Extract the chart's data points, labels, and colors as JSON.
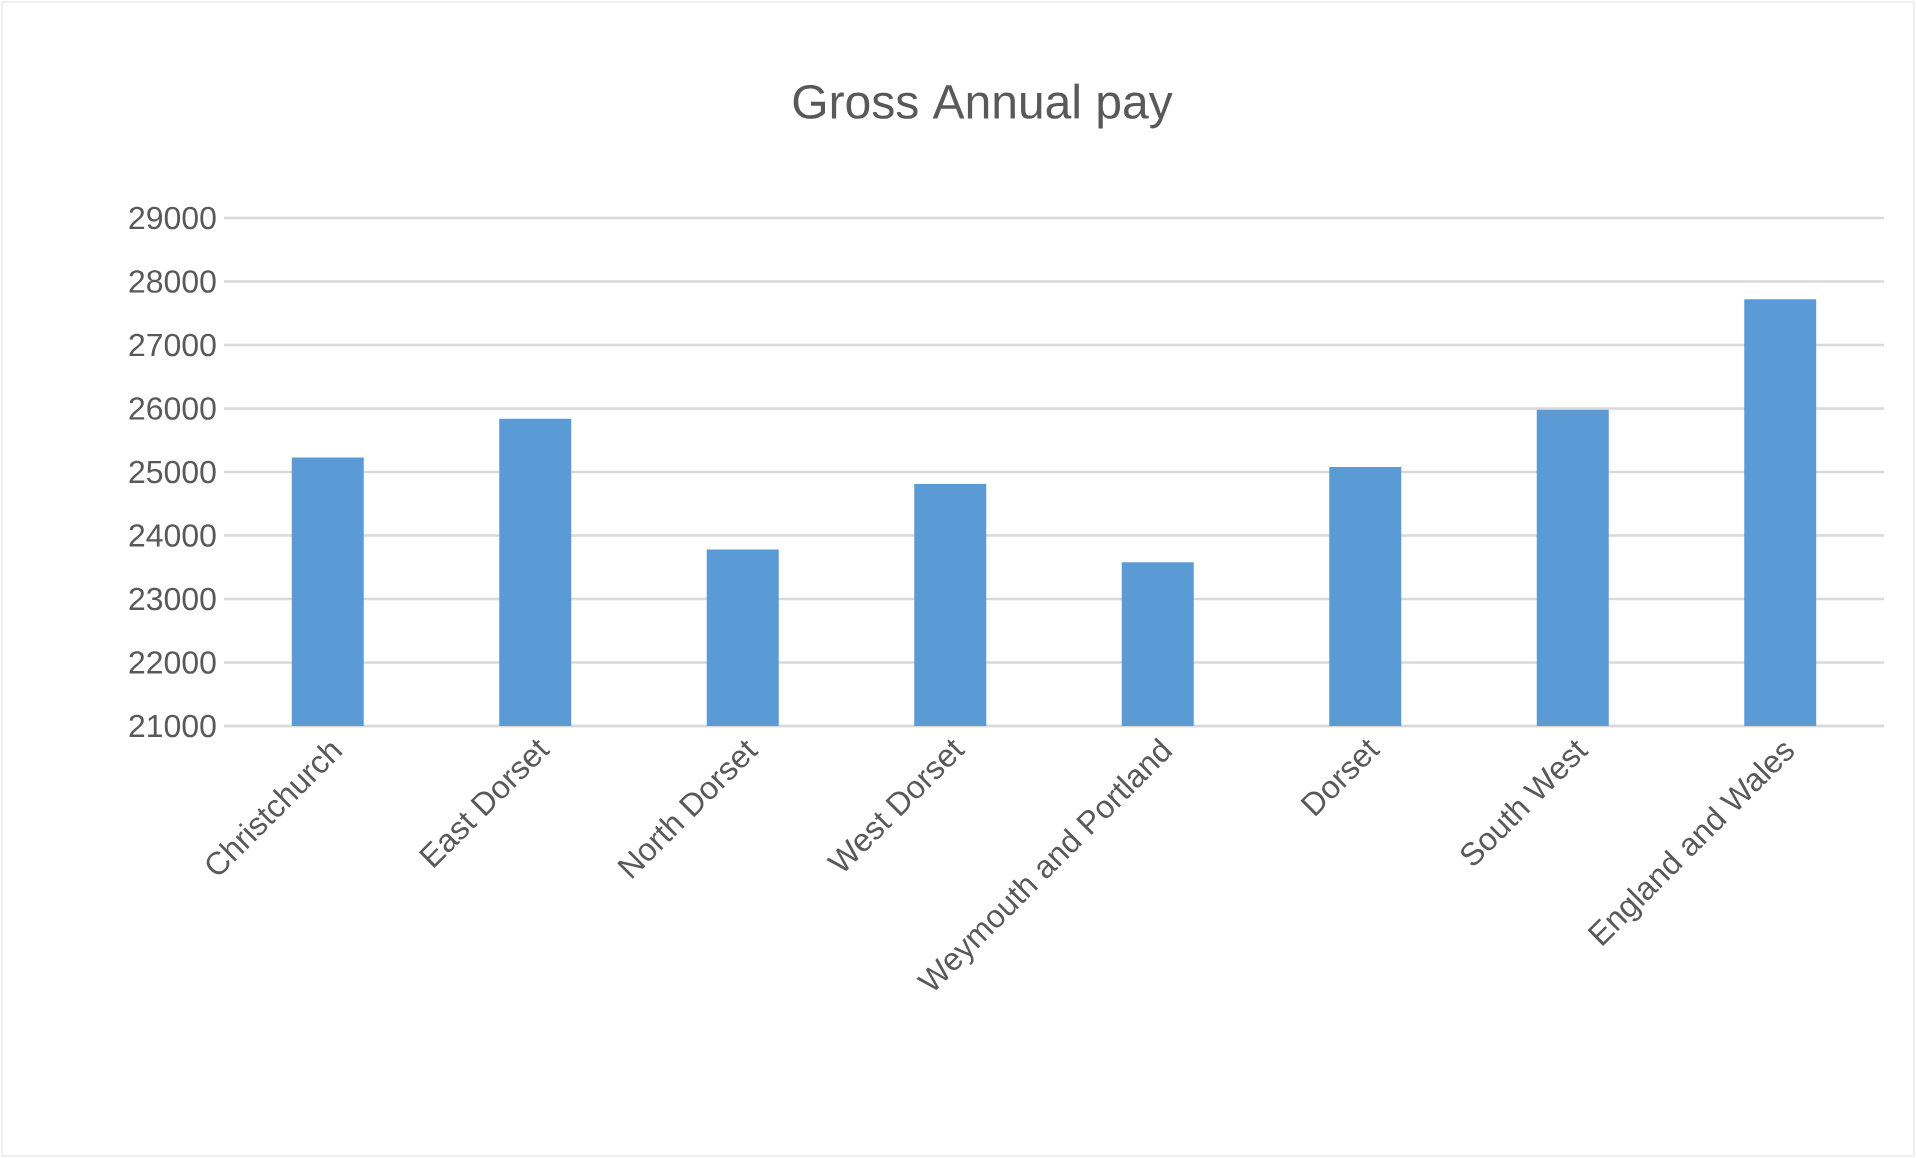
{
  "chart_data": {
    "type": "bar",
    "title": "Gross Annual pay",
    "categories": [
      "Christchurch",
      "East Dorset",
      "North Dorset",
      "West Dorset",
      "Weymouth and Portland",
      "Dorset",
      "South West",
      "England and Wales"
    ],
    "values": [
      25230,
      25840,
      23780,
      24810,
      23580,
      25080,
      25980,
      27720
    ],
    "color": "#5b9bd5",
    "ylim": [
      21000,
      29000
    ],
    "yticks": [
      21000,
      22000,
      23000,
      24000,
      25000,
      26000,
      27000,
      28000,
      29000
    ],
    "grid": "y"
  }
}
